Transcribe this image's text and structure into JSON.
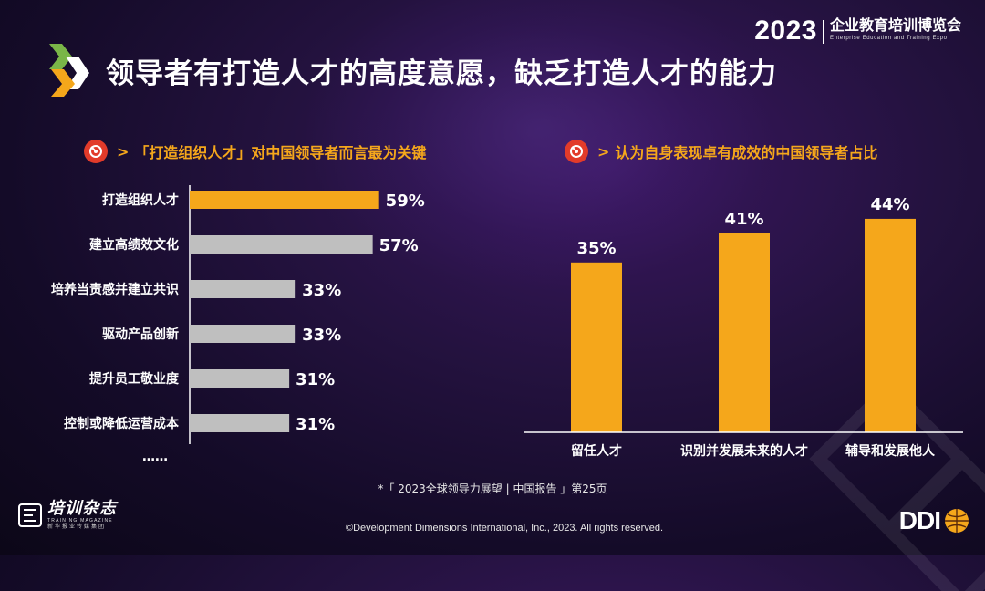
{
  "title": "领导者有打造人才的高度意愿，缺乏打造人才的能力",
  "expo": {
    "year": "2023",
    "name_cn": "企业教育培训博览会",
    "name_en": "Enterprise Education and Training Expo"
  },
  "left_section": {
    "arrow": ">",
    "heading": "「打造组织人才」对中国领导者而言最为关键"
  },
  "right_section": {
    "arrow": ">",
    "heading": "认为自身表现卓有成效的中国领导者占比"
  },
  "colors": {
    "highlight": "#f5a71b",
    "neutral": "#bfbfbf",
    "accent_red": "#e23b2a"
  },
  "chart_data": [
    {
      "type": "bar",
      "orientation": "horizontal",
      "categories": [
        "打造组织人才",
        "建立高绩效文化",
        "培养当责感并建立共识",
        "驱动产品创新",
        "提升员工敬业度",
        "控制或降低运营成本"
      ],
      "values": [
        59,
        57,
        33,
        33,
        31,
        31
      ],
      "value_labels": [
        "59%",
        "57%",
        "33%",
        "33%",
        "31%",
        "31%"
      ],
      "highlight_index": 0,
      "ellipsis": "……",
      "xlim": [
        0,
        100
      ]
    },
    {
      "type": "bar",
      "orientation": "vertical",
      "categories": [
        "留任人才",
        "识别并发展未来的人才",
        "辅导和发展他人"
      ],
      "values": [
        35,
        41,
        44
      ],
      "value_labels": [
        "35%",
        "41%",
        "44%"
      ],
      "ylim": [
        0,
        50
      ]
    }
  ],
  "footnote": "*「 2023全球领导力展望 | 中国报告 」第25页",
  "copyright": "©Development Dimensions International, Inc., 2023. All rights reserved.",
  "magazine": {
    "name_cn": "培训杂志",
    "name_en": "TRAINING MAGAZINE",
    "sub": "新华报业传媒集团"
  },
  "logo": {
    "text": "DDI"
  }
}
